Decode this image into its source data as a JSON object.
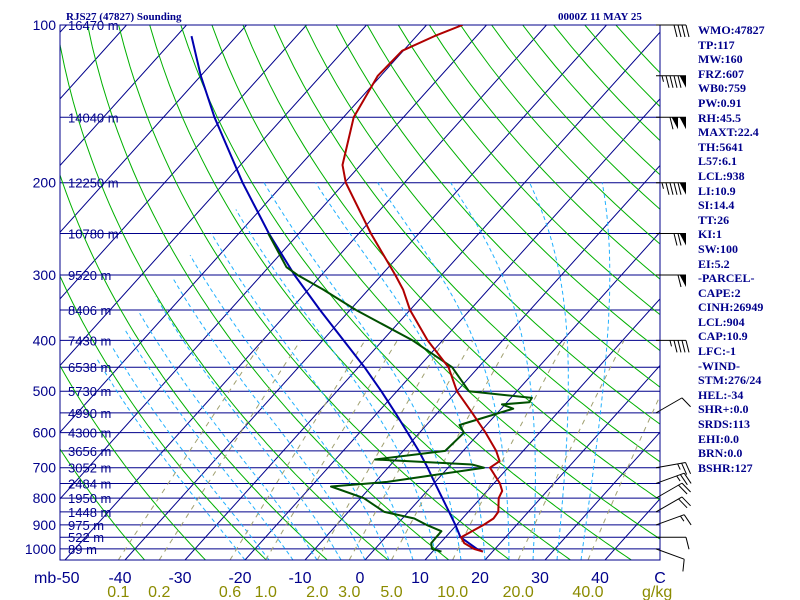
{
  "header": {
    "station": "RJS27 (47827) Sounding",
    "time": "0000Z 11 MAY 25"
  },
  "stats": [
    "WMO:47827",
    "TP:117",
    "MW:160",
    "FRZ:607",
    "WB0:759",
    "PW:0.91",
    "RH:45.5",
    "MAXT:22.4",
    "TH:5641",
    "L57:6.1",
    "LCL:938",
    "LI:10.9",
    "SI:14.4",
    "TT:26",
    "KI:1",
    "SW:100",
    "EI:5.2",
    "-PARCEL-",
    "CAPE:2",
    "CINH:26949",
    "LCL:904",
    "CAP:10.9",
    "LFC:-1",
    "-WIND-",
    "STM:276/24",
    "HEL:-34",
    "SHR+:0.0",
    "SRDS:113",
    "EHI:0.0",
    "BRN:0.0",
    "BSHR:127"
  ],
  "colors": {
    "isobar": "#00008b",
    "isotherm": "#00008b",
    "dry_adiabat": "#00b000",
    "moist_adiabat": "#20b0ff",
    "mixing_ratio": "#a0a070",
    "temperature": "#b00000",
    "dewpoint": "#005000",
    "parcel": "#0000b0",
    "wind": "#000000"
  },
  "chart_data": {
    "type": "skew-t",
    "pressure_axis_label": "mb",
    "pressure_ticks": [
      100,
      200,
      300,
      400,
      500,
      600,
      700,
      800,
      900,
      1000
    ],
    "height_levels": [
      {
        "p": 100,
        "label": "16470 m"
      },
      {
        "p": 150,
        "label": "14040 m"
      },
      {
        "p": 200,
        "label": "12250 m"
      },
      {
        "p": 250,
        "label": "10780 m"
      },
      {
        "p": 300,
        "label": "9520 m"
      },
      {
        "p": 350,
        "label": "8406 m"
      },
      {
        "p": 400,
        "label": "7430 m"
      },
      {
        "p": 450,
        "label": "6538 m"
      },
      {
        "p": 500,
        "label": "5730 m"
      },
      {
        "p": 550,
        "label": "4990 m"
      },
      {
        "p": 600,
        "label": "4300 m"
      },
      {
        "p": 650,
        "label": "3656 m"
      },
      {
        "p": 700,
        "label": "3052 m"
      },
      {
        "p": 750,
        "label": "2484 m"
      },
      {
        "p": 800,
        "label": "1950 m"
      },
      {
        "p": 850,
        "label": "1448 m"
      },
      {
        "p": 900,
        "label": "975 m"
      },
      {
        "p": 950,
        "label": "522 m"
      },
      {
        "p": 1000,
        "label": "89 m"
      }
    ],
    "temperature_ticks": [
      -50,
      -40,
      -30,
      -20,
      -10,
      0,
      10,
      20,
      30,
      40,
      50
    ],
    "temperature_tick_labels": [
      "-50",
      "-40",
      "-30",
      "-20",
      "-10",
      "0",
      "10",
      "20",
      "30",
      "40",
      "C"
    ],
    "mixing_ratio_ticks": [
      {
        "value": 0.1,
        "label": "0.1"
      },
      {
        "value": 0.2,
        "label": "0.2"
      },
      {
        "value": 0.6,
        "label": "0.6"
      },
      {
        "value": 1.0,
        "label": "1.0"
      },
      {
        "value": 2.0,
        "label": "2.0"
      },
      {
        "value": 3.0,
        "label": "3.0"
      },
      {
        "value": 5.0,
        "label": "5.0"
      },
      {
        "value": 10.0,
        "label": "10.0"
      },
      {
        "value": 20.0,
        "label": "20.0"
      },
      {
        "value": 40.0,
        "label": "40.0"
      }
    ],
    "mixing_ratio_unit": "g/kg",
    "temperature_profile": [
      {
        "p": 1012,
        "t": 18.4
      },
      {
        "p": 1000,
        "t": 16.5
      },
      {
        "p": 975,
        "t": 14.0
      },
      {
        "p": 950,
        "t": 12.6
      },
      {
        "p": 925,
        "t": 13.5
      },
      {
        "p": 900,
        "t": 14.5
      },
      {
        "p": 875,
        "t": 15.2
      },
      {
        "p": 850,
        "t": 15.0
      },
      {
        "p": 800,
        "t": 13.0
      },
      {
        "p": 775,
        "t": 12.5
      },
      {
        "p": 750,
        "t": 11.0
      },
      {
        "p": 700,
        "t": 7.0
      },
      {
        "p": 680,
        "t": 7.6
      },
      {
        "p": 650,
        "t": 5.5
      },
      {
        "p": 600,
        "t": 1.0
      },
      {
        "p": 550,
        "t": -4.2
      },
      {
        "p": 500,
        "t": -10.0
      },
      {
        "p": 450,
        "t": -15.0
      },
      {
        "p": 400,
        "t": -22.5
      },
      {
        "p": 350,
        "t": -30.0
      },
      {
        "p": 320,
        "t": -34.2
      },
      {
        "p": 300,
        "t": -37.7
      },
      {
        "p": 250,
        "t": -48.0
      },
      {
        "p": 200,
        "t": -59.8
      },
      {
        "p": 185,
        "t": -63.0
      },
      {
        "p": 150,
        "t": -68.3
      },
      {
        "p": 125,
        "t": -70.5
      },
      {
        "p": 112,
        "t": -70.2
      },
      {
        "p": 105,
        "t": -67.0
      },
      {
        "p": 100,
        "t": -64.0
      }
    ],
    "dewpoint_profile": [
      {
        "p": 1012,
        "td": 11.5
      },
      {
        "p": 1000,
        "td": 9.5
      },
      {
        "p": 975,
        "td": 8.5
      },
      {
        "p": 925,
        "td": 8.4
      },
      {
        "p": 900,
        "td": 5.0
      },
      {
        "p": 875,
        "td": 2.0
      },
      {
        "p": 850,
        "td": -4.0
      },
      {
        "p": 800,
        "td": -9.5
      },
      {
        "p": 760,
        "td": -16.7
      },
      {
        "p": 745,
        "td": -8.0
      },
      {
        "p": 700,
        "td": 6.0
      },
      {
        "p": 690,
        "td": 3.5
      },
      {
        "p": 675,
        "td": -13.4
      },
      {
        "p": 650,
        "td": -3.0
      },
      {
        "p": 600,
        "td": -2.6
      },
      {
        "p": 580,
        "td": -4.5
      },
      {
        "p": 560,
        "td": -1.3
      },
      {
        "p": 540,
        "td": 2.0
      },
      {
        "p": 530,
        "td": -0.5
      },
      {
        "p": 525,
        "td": 3.7
      },
      {
        "p": 515,
        "td": 3.5
      },
      {
        "p": 500,
        "td": -8.0
      },
      {
        "p": 450,
        "td": -14.4
      },
      {
        "p": 400,
        "td": -25.0
      },
      {
        "p": 350,
        "td": -39.0
      },
      {
        "p": 320,
        "td": -47.5
      },
      {
        "p": 300,
        "td": -54.0
      },
      {
        "p": 290,
        "td": -57.0
      },
      {
        "p": 250,
        "td": -65.1
      }
    ],
    "parcel_profile": [
      {
        "p": 1012,
        "t": 18.4
      },
      {
        "p": 1000,
        "t": 17.0
      },
      {
        "p": 950,
        "t": 12.5
      },
      {
        "p": 900,
        "t": 9.8
      },
      {
        "p": 850,
        "t": 6.8
      },
      {
        "p": 800,
        "t": 3.6
      },
      {
        "p": 750,
        "t": 0.2
      },
      {
        "p": 700,
        "t": -3.4
      },
      {
        "p": 650,
        "t": -7.4
      },
      {
        "p": 600,
        "t": -12.0
      },
      {
        "p": 550,
        "t": -17.0
      },
      {
        "p": 500,
        "t": -22.6
      },
      {
        "p": 450,
        "t": -29.0
      },
      {
        "p": 400,
        "t": -36.5
      },
      {
        "p": 350,
        "t": -45.0
      },
      {
        "p": 300,
        "t": -54.5
      },
      {
        "p": 250,
        "t": -65.0
      },
      {
        "p": 200,
        "t": -77.0
      },
      {
        "p": 150,
        "t": -91.5
      },
      {
        "p": 125,
        "t": -100.0
      },
      {
        "p": 105,
        "t": -107.5
      }
    ],
    "wind_barbs": [
      {
        "p": 1000,
        "dir": 250,
        "kt": 10
      },
      {
        "p": 950,
        "dir": 270,
        "kt": 10
      },
      {
        "p": 900,
        "dir": 290,
        "kt": 15
      },
      {
        "p": 850,
        "dir": 300,
        "kt": 20
      },
      {
        "p": 800,
        "dir": 300,
        "kt": 20
      },
      {
        "p": 750,
        "dir": 290,
        "kt": 25
      },
      {
        "p": 700,
        "dir": 280,
        "kt": 25
      },
      {
        "p": 550,
        "dir": 300,
        "kt": 10
      },
      {
        "p": 400,
        "dir": 270,
        "kt": 45
      },
      {
        "p": 300,
        "dir": 270,
        "kt": 60
      },
      {
        "p": 250,
        "dir": 270,
        "kt": 70
      },
      {
        "p": 200,
        "dir": 270,
        "kt": 95
      },
      {
        "p": 150,
        "dir": 270,
        "kt": 110
      },
      {
        "p": 125,
        "dir": 270,
        "kt": 95
      },
      {
        "p": 100,
        "dir": 270,
        "kt": 40
      }
    ]
  }
}
